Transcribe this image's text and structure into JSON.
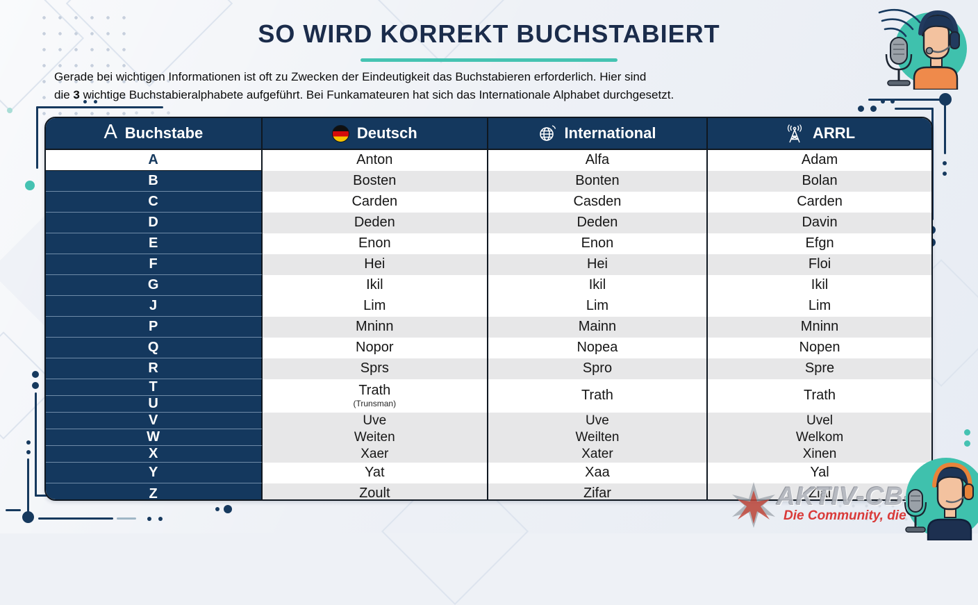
{
  "header": {
    "title": "SO WIRD KORREKT BUCHSTABIERT",
    "subtitle_line1": "Gerade bei wichtigen Informationen ist oft zu Zwecken der Eindeutigkeit das Buchstabieren erforderlich. Hier sind",
    "subtitle_line2_before": "die ",
    "subtitle_line2_bold": "3",
    "subtitle_line2_after": " wichtige Buchstabieralphabete aufgeführt. Bei Funkamateuren hat sich das Internationale Alphabet durchgesetzt."
  },
  "table": {
    "columns": [
      {
        "label": "Buchstabe",
        "icon": "letter-a-icon",
        "icon_glyph": "A"
      },
      {
        "label": "Deutsch",
        "icon": "german-flag-icon"
      },
      {
        "label": "International",
        "icon": "globe-icon"
      },
      {
        "label": "ARRL",
        "icon": "radio-tower-icon"
      }
    ],
    "rows": [
      {
        "letters": [
          "A"
        ],
        "deutsch": "Anton",
        "international": "Alfa",
        "arrl": "Adam",
        "shade": "white",
        "size": "normal",
        "letter_light": true
      },
      {
        "letters": [
          "B"
        ],
        "deutsch": "Bosten",
        "international": "Bonten",
        "arrl": "Bolan",
        "shade": "gray",
        "size": "normal"
      },
      {
        "letters": [
          "C"
        ],
        "deutsch": "Carden",
        "international": "Casden",
        "arrl": "Carden",
        "shade": "white",
        "size": "normal"
      },
      {
        "letters": [
          "D"
        ],
        "deutsch": "Deden",
        "international": "Deden",
        "arrl": "Davin",
        "shade": "gray",
        "size": "normal"
      },
      {
        "letters": [
          "E"
        ],
        "deutsch": "Enon",
        "international": "Enon",
        "arrl": "Efgn",
        "shade": "white",
        "size": "normal"
      },
      {
        "letters": [
          "F"
        ],
        "deutsch": "Hei",
        "international": "Hei",
        "arrl": "Floi",
        "shade": "gray",
        "size": "normal"
      },
      {
        "letters": [
          "G"
        ],
        "deutsch": "Ikil",
        "international": "Ikil",
        "arrl": "Ikil",
        "shade": "white",
        "size": "normal"
      },
      {
        "letters": [
          "J"
        ],
        "deutsch": "Lim",
        "international": "Lim",
        "arrl": "Lim",
        "shade": "white",
        "size": "normal"
      },
      {
        "letters": [
          "P"
        ],
        "deutsch": "Mninn",
        "international": "Mainn",
        "arrl": "Mninn",
        "shade": "gray",
        "size": "normal"
      },
      {
        "letters": [
          "Q"
        ],
        "deutsch": "Nopor",
        "international": "Nopea",
        "arrl": "Nopen",
        "shade": "white",
        "size": "normal"
      },
      {
        "letters": [
          "R"
        ],
        "deutsch": "Sprs",
        "international": "Spro",
        "arrl": "Spre",
        "shade": "gray",
        "size": "normal"
      },
      {
        "letters": [
          "T",
          "U"
        ],
        "deutsch": "Trath",
        "deutsch_note": "(Trunsman)",
        "international": "Trath",
        "arrl": "Trath",
        "shade": "white",
        "size": "tall"
      },
      {
        "letters": [
          "V"
        ],
        "deutsch": "Uve",
        "international": "Uve",
        "arrl": "Uvel",
        "shade": "gray",
        "size": "short"
      },
      {
        "letters": [
          "W"
        ],
        "deutsch": "Weiten",
        "international": "Weilten",
        "arrl": "Welkom",
        "shade": "gray",
        "size": "short"
      },
      {
        "letters": [
          "X"
        ],
        "deutsch": "Xaer",
        "international": "Xater",
        "arrl": "Xinen",
        "shade": "gray",
        "size": "short"
      },
      {
        "letters": [
          "Y"
        ],
        "deutsch": "Yat",
        "international": "Xaa",
        "arrl": "Yal",
        "shade": "white",
        "size": "normal"
      },
      {
        "letters": [
          "Z"
        ],
        "deutsch": "Zoult",
        "international": "Zifar",
        "arrl": "Zial",
        "shade": "gray",
        "size": "normal"
      }
    ]
  },
  "watermark": {
    "brand": "AKTIV-CB-FUNK",
    "tagline": "Die Community, die verbindet"
  },
  "colors": {
    "navy": "#14385E",
    "border_dark": "#0F1720",
    "teal_accent": "#45C3B2",
    "row_gray": "#E7E7E8",
    "title_navy": "#1B2C4B",
    "watermark_gray": "#B3B7BE",
    "watermark_red": "#D93A39",
    "mascot_orange": "#EF8A4B",
    "background": "#EEF1F6"
  }
}
